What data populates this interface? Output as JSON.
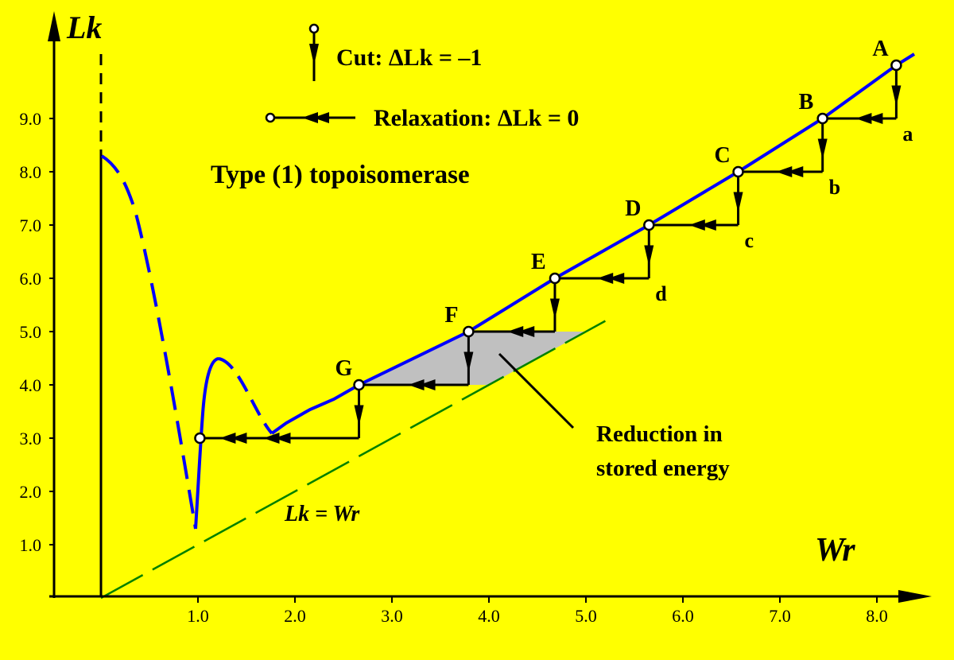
{
  "chart_data": {
    "type": "line",
    "title": "Type (1) topoisomerase",
    "xlabel": "Wr",
    "ylabel": "Lk",
    "xlim": [
      0,
      8.5
    ],
    "ylim": [
      0,
      10.5
    ],
    "x_ticks": [
      "1.0",
      "2.0",
      "3.0",
      "4.0",
      "5.0",
      "6.0",
      "7.0",
      "8.0"
    ],
    "y_ticks": [
      "1.0",
      "2.0",
      "3.0",
      "4.0",
      "5.0",
      "6.0",
      "7.0",
      "8.0",
      "9.0"
    ],
    "legend": {
      "cut": "Cut: ΔLk = –1",
      "relaxation": "Relaxation: ΔLk = 0"
    },
    "reference_line": {
      "label": "Lk = Wr",
      "slope": 1,
      "color": "#008000"
    },
    "curve_color": "#0000ff",
    "points": [
      {
        "label": "A",
        "x": 8.2,
        "y": 10.0
      },
      {
        "label": "B",
        "x": 7.44,
        "y": 9.0
      },
      {
        "label": "C",
        "x": 6.57,
        "y": 8.0
      },
      {
        "label": "D",
        "x": 5.65,
        "y": 7.0
      },
      {
        "label": "E",
        "x": 4.68,
        "y": 6.0
      },
      {
        "label": "F",
        "x": 3.79,
        "y": 5.0
      },
      {
        "label": "G",
        "x": 2.66,
        "y": 4.0
      },
      {
        "label": "",
        "x": 1.02,
        "y": 3.0
      }
    ],
    "cut_labels": [
      "a",
      "b",
      "c",
      "d"
    ],
    "shaded_region": {
      "label": "Reduction in stored energy",
      "line1": "Reduction in",
      "line2": "stored energy",
      "color": "#c0c0c0"
    }
  }
}
